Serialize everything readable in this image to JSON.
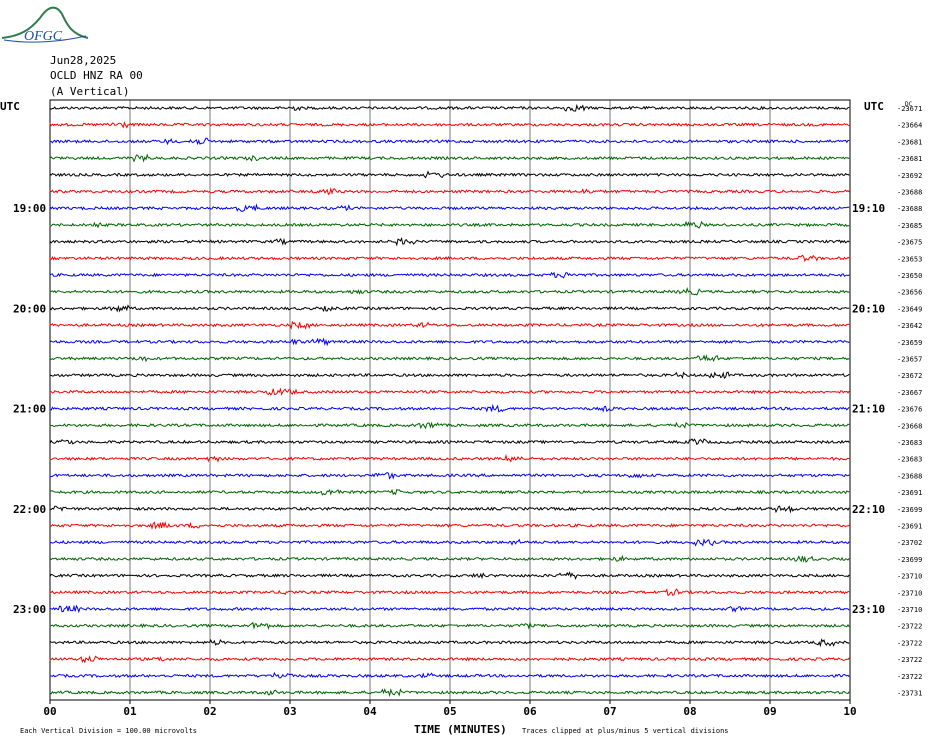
{
  "logo": {
    "text": "OFGC"
  },
  "header": {
    "date": "Jun28,2025",
    "station": "OCLD HNZ RA 00",
    "component": "(A Vertical)"
  },
  "left_axis_title": "UTC",
  "right_axis_title": "UTC",
  "dc_label": "DC",
  "footer": {
    "xlabel": "TIME (MINUTES)",
    "scale_note": "Each Vertical Division =  100.00 microvolts",
    "clip_note": "Traces clipped at plus/minus 5 vertical divisions"
  },
  "colors": [
    "#000000",
    "#ff0000",
    "#0000ff",
    "#006400"
  ],
  "chart_data": {
    "type": "line",
    "title": "OCLD HNZ RA 00 (A Vertical) Jun28,2025",
    "xlabel": "TIME (MINUTES)",
    "x_ticks": [
      "00",
      "01",
      "02",
      "03",
      "04",
      "05",
      "06",
      "07",
      "08",
      "09",
      "10"
    ],
    "xlim": [
      0,
      10
    ],
    "left_hour_labels": [
      {
        "row": 6,
        "label": "19:00"
      },
      {
        "row": 12,
        "label": "20:00"
      },
      {
        "row": 18,
        "label": "21:00"
      },
      {
        "row": 24,
        "label": "22:00"
      },
      {
        "row": 30,
        "label": "23:00"
      }
    ],
    "right_hour_labels": [
      {
        "row": 6,
        "label": "19:10"
      },
      {
        "row": 12,
        "label": "20:10"
      },
      {
        "row": 18,
        "label": "21:10"
      },
      {
        "row": 24,
        "label": "22:10"
      },
      {
        "row": 30,
        "label": "23:10"
      }
    ],
    "dc_offsets": [
      "-23671",
      "-23664",
      "-23681",
      "-23681",
      "-23692",
      "-23688",
      "-23688",
      "-23685",
      "-23675",
      "-23653",
      "-23650",
      "-23656",
      "-23649",
      "-23642",
      "-23659",
      "-23657",
      "-23672",
      "-23667",
      "-23676",
      "-23668",
      "-23683",
      "-23683",
      "-23688",
      "-23691",
      "-23699",
      "-23691",
      "-23702",
      "-23699",
      "-23710",
      "-23710",
      "-23710",
      "-23722",
      "-23722",
      "-23722",
      "-23722",
      "-23731"
    ],
    "trace_count": 36
  }
}
